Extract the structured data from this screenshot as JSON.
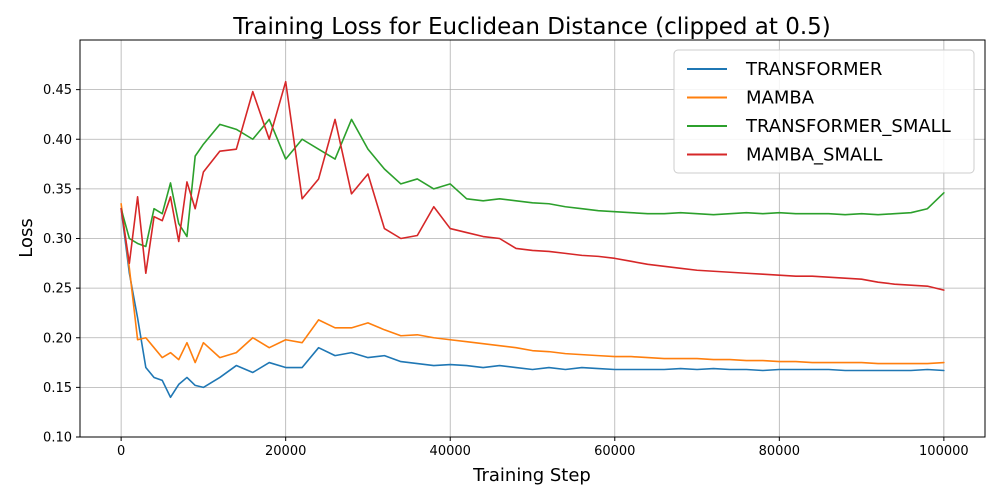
{
  "chart_data": {
    "type": "line",
    "title": "Training Loss for Euclidean Distance (clipped at 0.5)",
    "xlabel": "Training Step",
    "ylabel": "Loss",
    "xlim": [
      -5000,
      105000
    ],
    "ylim": [
      0.1,
      0.5
    ],
    "xticks": [
      0,
      20000,
      40000,
      60000,
      80000,
      100000
    ],
    "xtick_labels": [
      "0",
      "20000",
      "40000",
      "60000",
      "80000",
      "100000"
    ],
    "yticks": [
      0.1,
      0.15,
      0.2,
      0.25,
      0.3,
      0.35,
      0.4,
      0.45
    ],
    "ytick_labels": [
      "0.10",
      "0.15",
      "0.20",
      "0.25",
      "0.30",
      "0.35",
      "0.40",
      "0.45"
    ],
    "grid": true,
    "legend_position": "top-right",
    "series": [
      {
        "name": "TRANSFORMER",
        "color": "#1f77b4",
        "x": [
          0,
          1000,
          2000,
          3000,
          4000,
          5000,
          6000,
          7000,
          8000,
          9000,
          10000,
          12000,
          14000,
          16000,
          18000,
          20000,
          22000,
          24000,
          26000,
          28000,
          30000,
          32000,
          34000,
          36000,
          38000,
          40000,
          42000,
          44000,
          46000,
          48000,
          50000,
          52000,
          54000,
          56000,
          58000,
          60000,
          62000,
          64000,
          66000,
          68000,
          70000,
          72000,
          74000,
          76000,
          78000,
          80000,
          82000,
          84000,
          86000,
          88000,
          90000,
          92000,
          94000,
          96000,
          98000,
          100000
        ],
        "y": [
          0.33,
          0.265,
          0.22,
          0.17,
          0.16,
          0.157,
          0.14,
          0.153,
          0.16,
          0.152,
          0.15,
          0.16,
          0.172,
          0.165,
          0.175,
          0.17,
          0.17,
          0.19,
          0.182,
          0.185,
          0.18,
          0.182,
          0.176,
          0.174,
          0.172,
          0.173,
          0.172,
          0.17,
          0.172,
          0.17,
          0.168,
          0.17,
          0.168,
          0.17,
          0.169,
          0.168,
          0.168,
          0.168,
          0.168,
          0.169,
          0.168,
          0.169,
          0.168,
          0.168,
          0.167,
          0.168,
          0.168,
          0.168,
          0.168,
          0.167,
          0.167,
          0.167,
          0.167,
          0.167,
          0.168,
          0.167
        ]
      },
      {
        "name": "MAMBA",
        "color": "#ff7f0e",
        "x": [
          0,
          1000,
          2000,
          3000,
          4000,
          5000,
          6000,
          7000,
          8000,
          9000,
          10000,
          12000,
          14000,
          16000,
          18000,
          20000,
          22000,
          24000,
          26000,
          28000,
          30000,
          32000,
          34000,
          36000,
          38000,
          40000,
          42000,
          44000,
          46000,
          48000,
          50000,
          52000,
          54000,
          56000,
          58000,
          60000,
          62000,
          64000,
          66000,
          68000,
          70000,
          72000,
          74000,
          76000,
          78000,
          80000,
          82000,
          84000,
          86000,
          88000,
          90000,
          92000,
          94000,
          96000,
          98000,
          100000
        ],
        "y": [
          0.335,
          0.27,
          0.198,
          0.2,
          0.19,
          0.18,
          0.185,
          0.178,
          0.195,
          0.175,
          0.195,
          0.18,
          0.185,
          0.2,
          0.19,
          0.198,
          0.195,
          0.218,
          0.21,
          0.21,
          0.215,
          0.208,
          0.202,
          0.203,
          0.2,
          0.198,
          0.196,
          0.194,
          0.192,
          0.19,
          0.187,
          0.186,
          0.184,
          0.183,
          0.182,
          0.181,
          0.181,
          0.18,
          0.179,
          0.179,
          0.179,
          0.178,
          0.178,
          0.177,
          0.177,
          0.176,
          0.176,
          0.175,
          0.175,
          0.175,
          0.175,
          0.174,
          0.174,
          0.174,
          0.174,
          0.175
        ]
      },
      {
        "name": "TRANSFORMER_SMALL",
        "color": "#2ca02c",
        "x": [
          0,
          1000,
          2000,
          3000,
          4000,
          5000,
          6000,
          7000,
          8000,
          9000,
          10000,
          12000,
          14000,
          16000,
          18000,
          20000,
          22000,
          24000,
          26000,
          28000,
          30000,
          32000,
          34000,
          36000,
          38000,
          40000,
          42000,
          44000,
          46000,
          48000,
          50000,
          52000,
          54000,
          56000,
          58000,
          60000,
          62000,
          64000,
          66000,
          68000,
          70000,
          72000,
          74000,
          76000,
          78000,
          80000,
          82000,
          84000,
          86000,
          88000,
          90000,
          92000,
          94000,
          96000,
          98000,
          100000
        ],
        "y": [
          0.33,
          0.3,
          0.295,
          0.292,
          0.33,
          0.325,
          0.356,
          0.315,
          0.302,
          0.383,
          0.395,
          0.415,
          0.41,
          0.4,
          0.42,
          0.38,
          0.4,
          0.39,
          0.38,
          0.42,
          0.39,
          0.37,
          0.355,
          0.36,
          0.35,
          0.355,
          0.34,
          0.338,
          0.34,
          0.338,
          0.336,
          0.335,
          0.332,
          0.33,
          0.328,
          0.327,
          0.326,
          0.325,
          0.325,
          0.326,
          0.325,
          0.324,
          0.325,
          0.326,
          0.325,
          0.326,
          0.325,
          0.325,
          0.325,
          0.324,
          0.325,
          0.324,
          0.325,
          0.326,
          0.33,
          0.346
        ]
      },
      {
        "name": "MAMBA_SMALL",
        "color": "#d62728",
        "x": [
          0,
          1000,
          2000,
          3000,
          4000,
          5000,
          6000,
          7000,
          8000,
          9000,
          10000,
          12000,
          14000,
          16000,
          18000,
          20000,
          22000,
          24000,
          26000,
          28000,
          30000,
          32000,
          34000,
          36000,
          38000,
          40000,
          42000,
          44000,
          46000,
          48000,
          50000,
          52000,
          54000,
          56000,
          58000,
          60000,
          62000,
          64000,
          66000,
          68000,
          70000,
          72000,
          74000,
          76000,
          78000,
          80000,
          82000,
          84000,
          86000,
          88000,
          90000,
          92000,
          94000,
          96000,
          98000,
          100000
        ],
        "y": [
          0.33,
          0.275,
          0.342,
          0.265,
          0.322,
          0.318,
          0.342,
          0.297,
          0.357,
          0.33,
          0.367,
          0.388,
          0.39,
          0.448,
          0.4,
          0.458,
          0.34,
          0.36,
          0.42,
          0.345,
          0.365,
          0.31,
          0.3,
          0.303,
          0.332,
          0.31,
          0.306,
          0.302,
          0.3,
          0.29,
          0.288,
          0.287,
          0.285,
          0.283,
          0.282,
          0.28,
          0.277,
          0.274,
          0.272,
          0.27,
          0.268,
          0.267,
          0.266,
          0.265,
          0.264,
          0.263,
          0.262,
          0.262,
          0.261,
          0.26,
          0.259,
          0.256,
          0.254,
          0.253,
          0.252,
          0.248
        ]
      }
    ]
  }
}
